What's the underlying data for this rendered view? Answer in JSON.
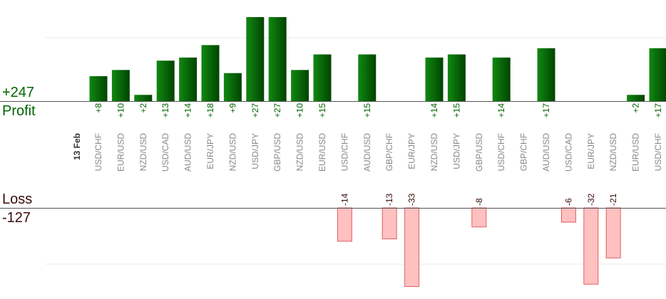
{
  "labels": {
    "profit_total": "+247",
    "profit_word": "Profit",
    "loss_word": "Loss",
    "loss_total": "-127"
  },
  "colors": {
    "profit_bar_light": "#118811",
    "profit_bar_dark": "#004400",
    "profit_text": "#006400",
    "loss_bar_fill": "#ffc0c0",
    "loss_bar_stroke": "#e06060",
    "loss_text": "#3a0a0a",
    "category_text": "#888888",
    "date_text": "#333333",
    "gridline": "#e8e8e8",
    "axis_line": "#555555"
  },
  "chart_data": {
    "type": "bar",
    "date_label": "13 Feb",
    "categories": [
      "USD/CHF",
      "EUR/USD",
      "NZD/USD",
      "USD/CAD",
      "AUD/USD",
      "EUR/JPY",
      "NZD/USD",
      "USD/JPY",
      "GBP/USD",
      "NZD/USD",
      "EUR/USD",
      "USD/CHF",
      "AUD/USD",
      "GBP/CHF",
      "EUR/JPY",
      "NZD/USD",
      "USD/JPY",
      "GBP/USD",
      "USD/CHF",
      "GBP/CHF",
      "AUD/USD",
      "USD/CAD",
      "EUR/JPY",
      "NZD/USD",
      "EUR/USD",
      "USD/CHF"
    ],
    "series": [
      {
        "values": [
          8,
          10,
          2,
          13,
          14,
          18,
          9,
          27,
          27,
          10,
          15,
          null,
          15,
          null,
          null,
          14,
          15,
          null,
          14,
          null,
          17,
          null,
          null,
          null,
          2,
          17
        ]
      },
      {
        "values": [
          null,
          null,
          null,
          null,
          null,
          null,
          null,
          null,
          null,
          null,
          null,
          -14,
          null,
          -13,
          -33,
          null,
          null,
          -8,
          null,
          null,
          null,
          -6,
          -32,
          -21,
          null,
          null
        ]
      }
    ],
    "profit_labels": [
      "+8",
      "+10",
      "+2",
      "+13",
      "+14",
      "+18",
      "+9",
      "+27",
      "+27",
      "+10",
      "+15",
      "",
      "+15",
      "",
      "",
      "+14",
      "+15",
      "",
      "+14",
      "",
      "+17",
      "",
      "",
      "",
      "+2",
      "+17"
    ],
    "loss_labels": [
      "",
      "",
      "",
      "",
      "",
      "",
      "",
      "",
      "",
      "",
      "",
      "-14",
      "",
      "-13",
      "-33",
      "",
      "",
      "-8",
      "",
      "",
      "",
      "-6",
      "-32",
      "-21",
      "",
      ""
    ]
  }
}
